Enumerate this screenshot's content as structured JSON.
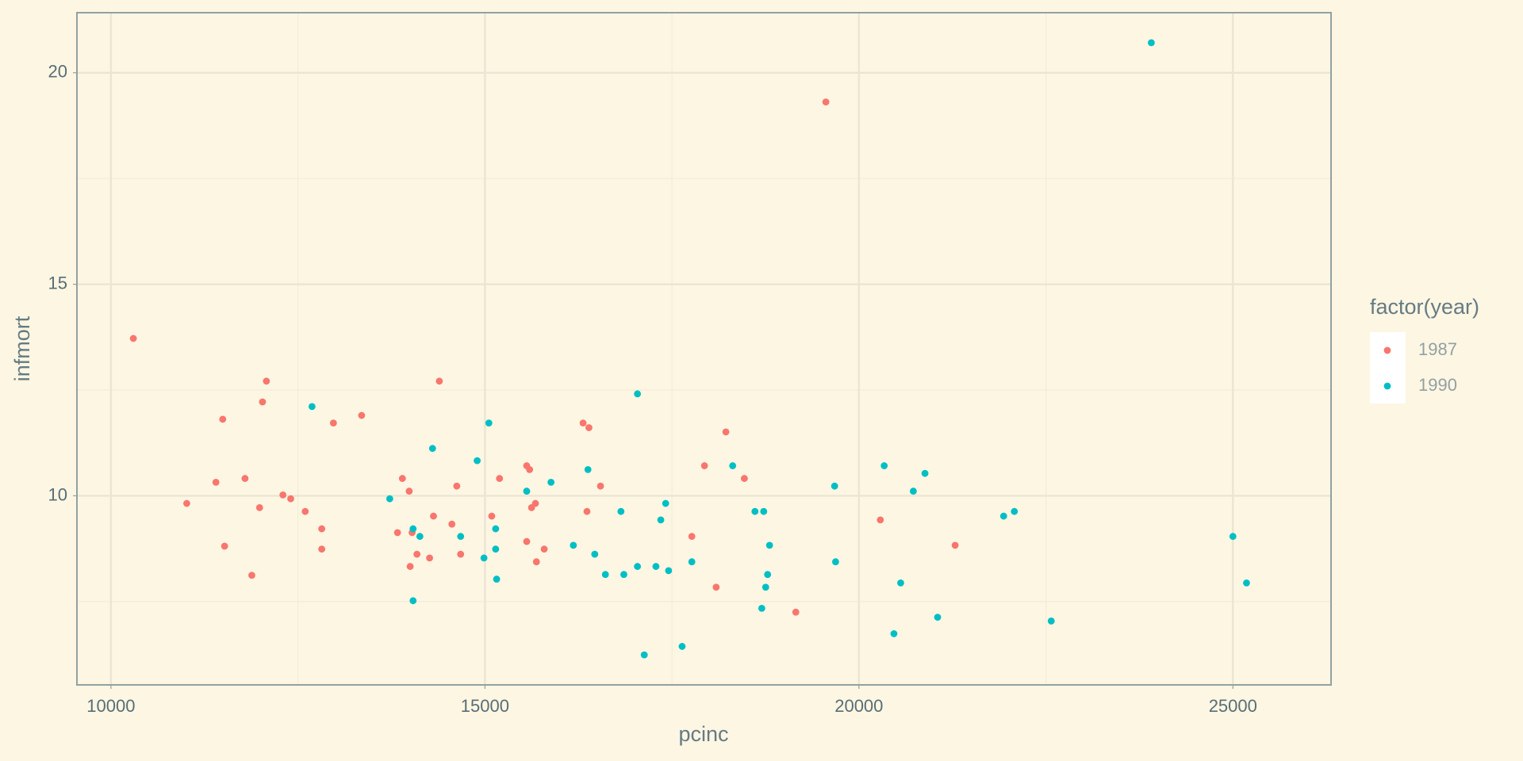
{
  "chart_data": {
    "type": "scatter",
    "x_label": "pcinc",
    "y_label": "infmort",
    "xlim": [
      9545,
      26312
    ],
    "ylim": [
      5.53,
      21.42
    ],
    "xticks": [
      10000,
      15000,
      20000,
      25000
    ],
    "yticks": [
      10,
      15,
      20
    ],
    "x_minor_grid": [
      12500,
      17500,
      22500
    ],
    "y_minor_grid": [
      7.5,
      12.5,
      17.5
    ],
    "grid": true,
    "legend_position": "right",
    "legend_title": "factor(year)",
    "series": [
      {
        "name": "1987",
        "color": "#f8766d",
        "x": [
          10299,
          11013,
          11403,
          11494,
          11519,
          11792,
          11883,
          11987,
          12026,
          12078,
          12299,
          12403,
          12597,
          12818,
          12818,
          12974,
          13351,
          13831,
          13896,
          13987,
          14000,
          14026,
          14091,
          14260,
          14312,
          14390,
          14558,
          14623,
          14675,
          15091,
          15195,
          15558,
          15597,
          15558,
          15623,
          15675,
          15688,
          15792,
          16312,
          16390,
          16364,
          16545,
          17766,
          17935,
          18091,
          18221,
          18468,
          19156,
          19558,
          20286,
          21286
        ],
        "values": [
          13.72,
          9.82,
          10.32,
          11.81,
          8.81,
          10.41,
          8.12,
          9.72,
          12.22,
          12.71,
          10.02,
          9.93,
          9.63,
          9.22,
          8.74,
          11.72,
          11.9,
          9.13,
          10.41,
          10.11,
          8.33,
          9.13,
          8.62,
          8.53,
          9.52,
          12.71,
          9.33,
          10.23,
          8.62,
          9.52,
          10.41,
          10.71,
          10.62,
          8.92,
          9.72,
          9.82,
          8.44,
          8.74,
          11.72,
          11.61,
          9.63,
          10.23,
          9.04,
          10.71,
          7.84,
          11.51,
          10.41,
          7.25,
          19.31,
          9.43,
          8.83
        ]
      },
      {
        "name": "1990",
        "color": "#00bfc4",
        "x": [
          12688,
          13727,
          14039,
          14039,
          14130,
          14299,
          14675,
          14896,
          14987,
          15052,
          15143,
          15143,
          15156,
          15558,
          15883,
          16182,
          16377,
          16468,
          16610,
          16818,
          16857,
          17039,
          17039,
          17130,
          17286,
          17351,
          17416,
          17455,
          17636,
          17766,
          18312,
          18610,
          18701,
          18727,
          18753,
          18779,
          18805,
          19675,
          19688,
          20338,
          20468,
          20558,
          20727,
          20883,
          21052,
          21935,
          22078,
          22571,
          23909,
          25000,
          25182
        ],
        "values": [
          12.11,
          9.93,
          9.22,
          7.52,
          9.04,
          11.12,
          9.04,
          10.83,
          8.53,
          11.72,
          9.22,
          8.74,
          8.03,
          10.11,
          10.32,
          8.83,
          10.62,
          8.62,
          8.14,
          9.63,
          8.14,
          8.33,
          12.41,
          6.24,
          8.33,
          9.43,
          9.82,
          8.23,
          6.44,
          8.44,
          10.71,
          9.63,
          7.34,
          9.63,
          7.84,
          8.14,
          8.83,
          10.23,
          8.44,
          10.71,
          6.74,
          7.94,
          10.11,
          10.53,
          7.13,
          9.52,
          9.63,
          7.04,
          20.71,
          9.04,
          7.94
        ]
      }
    ]
  }
}
